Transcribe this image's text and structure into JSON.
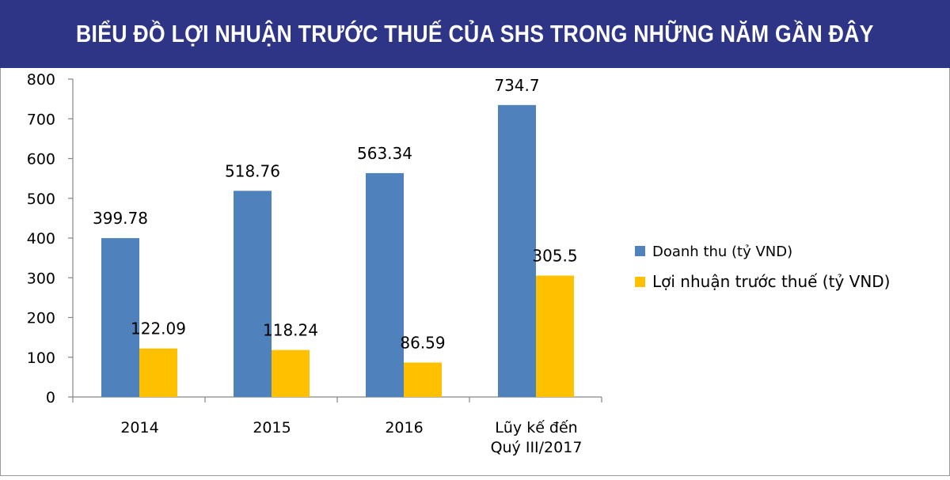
{
  "title": "BIỂU ĐỒ LỢI NHUẬN TRƯỚC THUẾ CỦA SHS TRONG NHỮNG NĂM GẦN ĐÂY",
  "chart_data": {
    "type": "bar",
    "categories": [
      [
        "2014"
      ],
      [
        "2015"
      ],
      [
        "2016"
      ],
      [
        "Lũy kế đến",
        "Quý III/2017"
      ]
    ],
    "series": [
      {
        "name": "Doanh thu (tỷ VND)",
        "color": "#4f81bd",
        "values": [
          399.78,
          518.76,
          563.34,
          734.7
        ],
        "labels": [
          "399.78",
          "518.76",
          "563.34",
          "734.7"
        ]
      },
      {
        "name": "Lợi nhuận trước thuế (tỷ VND)",
        "color": "#ffc000",
        "values": [
          122.09,
          118.24,
          86.59,
          305.5
        ],
        "labels": [
          "122.09",
          "118.24",
          "86.59",
          "305.5"
        ]
      }
    ],
    "ylim": [
      0,
      800
    ],
    "yticks": [
      "0",
      "100",
      "200",
      "300",
      "400",
      "500",
      "600",
      "700",
      "800"
    ],
    "grid": false,
    "legend": "right"
  }
}
